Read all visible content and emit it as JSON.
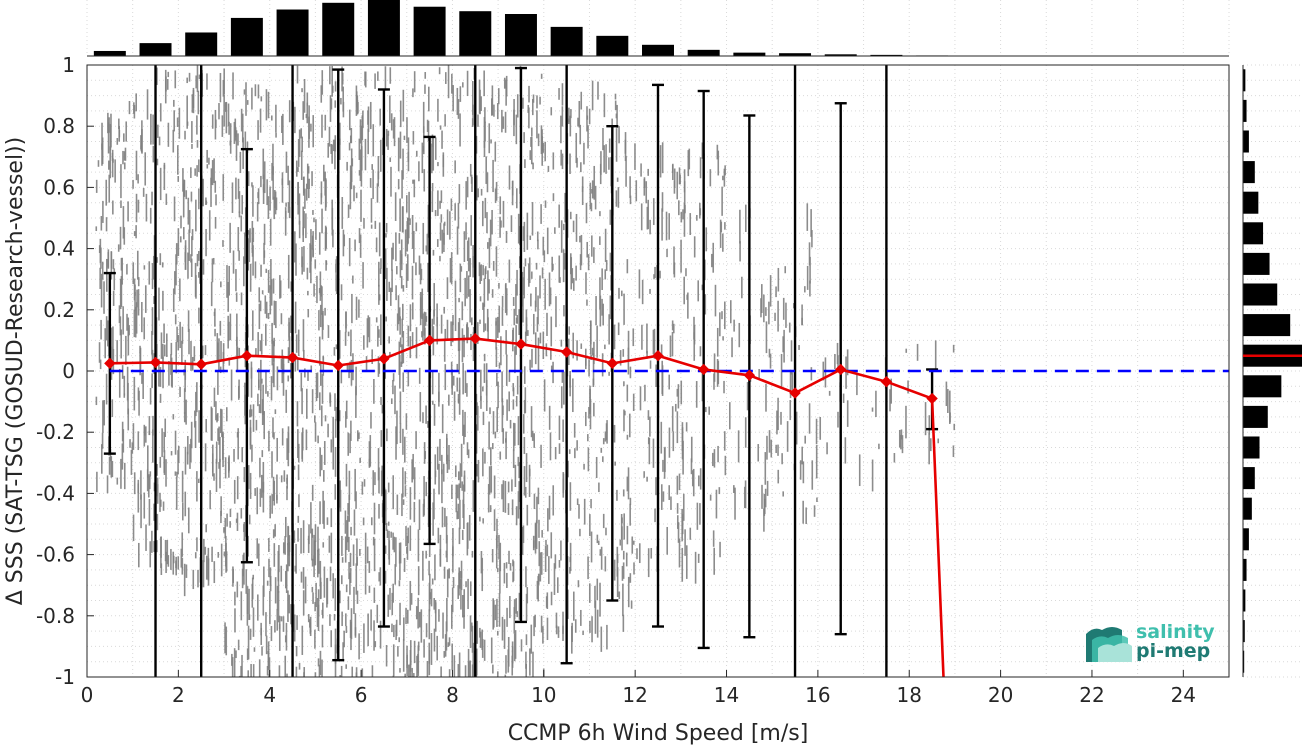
{
  "chart_data": {
    "type": "scatter",
    "xlabel": "CCMP 6h Wind Speed [m/s]",
    "ylabel": "Δ SSS (SAT-TSG (GOSUD-Research-vessel))",
    "xlim": [
      0,
      25
    ],
    "ylim": [
      -1,
      1
    ],
    "x_ticks": [
      "0",
      "2",
      "4",
      "6",
      "8",
      "10",
      "12",
      "14",
      "16",
      "18",
      "20",
      "22",
      "24"
    ],
    "y_ticks": [
      "-1",
      "-0.8",
      "-0.6",
      "-0.4",
      "-0.2",
      "0",
      "0.2",
      "0.4",
      "0.6",
      "0.8",
      "1"
    ],
    "grid": true,
    "reference_line": {
      "y": 0,
      "style": "dashed",
      "color": "#0000ff"
    },
    "binned_mean": {
      "color": "#e60000",
      "marker": "diamond",
      "x": [
        0.5,
        1.5,
        2.5,
        3.5,
        4.5,
        5.5,
        6.5,
        7.5,
        8.5,
        9.5,
        10.5,
        11.5,
        12.5,
        13.5,
        14.5,
        15.5,
        16.5,
        17.5,
        18.5
      ],
      "y": [
        0.025,
        0.028,
        0.022,
        0.05,
        0.044,
        0.018,
        0.04,
        0.1,
        0.106,
        0.088,
        0.062,
        0.025,
        0.05,
        0.005,
        -0.014,
        -0.072,
        0.005,
        -0.035,
        -0.09
      ],
      "tail": {
        "x": 18.75,
        "y": -1.0
      }
    },
    "error_bars": {
      "color": "#000000",
      "x": [
        0.5,
        1.5,
        2.5,
        3.5,
        4.5,
        5.5,
        6.5,
        7.5,
        8.5,
        9.5,
        10.5,
        11.5,
        12.5,
        13.5,
        14.5,
        15.5,
        16.5,
        17.5,
        18.5
      ],
      "low": [
        -0.27,
        -1.0,
        -1.0,
        -0.625,
        -1.0,
        -0.945,
        -0.835,
        -0.565,
        -1.0,
        -0.82,
        -0.955,
        -0.75,
        -0.835,
        -0.905,
        -0.87,
        -1.0,
        -0.86,
        -1.0,
        -0.19
      ],
      "high": [
        0.32,
        1.0,
        1.0,
        0.725,
        1.0,
        0.985,
        0.92,
        0.765,
        1.0,
        0.99,
        1.0,
        0.8,
        0.935,
        0.915,
        0.835,
        1.0,
        0.875,
        1.0,
        0.005
      ]
    },
    "scatter": {
      "color": "#808080",
      "description_bins": [
        {
          "x_from": 0.2,
          "x_to": 1,
          "y_from": -0.35,
          "y_to": 0.9,
          "density": 0.55
        },
        {
          "x_from": 1,
          "x_to": 3,
          "y_from": -0.65,
          "y_to": 1.0,
          "density": 0.7
        },
        {
          "x_from": 3,
          "x_to": 10,
          "y_from": -1.0,
          "y_to": 1.0,
          "density": 0.9
        },
        {
          "x_from": 10,
          "x_to": 12,
          "y_from": -0.85,
          "y_to": 0.95,
          "density": 0.6
        },
        {
          "x_from": 12,
          "x_to": 14,
          "y_from": -0.6,
          "y_to": 0.75,
          "density": 0.35
        },
        {
          "x_from": 14,
          "x_to": 16,
          "y_from": -0.45,
          "y_to": 0.55,
          "density": 0.18
        },
        {
          "x_from": 16,
          "x_to": 19,
          "y_from": -0.3,
          "y_to": 0.1,
          "density": 0.06
        }
      ]
    },
    "top_histogram": {
      "color": "#000000",
      "bin_centers": [
        0.5,
        1.5,
        2.5,
        3.5,
        4.5,
        5.5,
        6.5,
        7.5,
        8.5,
        9.5,
        10.5,
        11.5,
        12.5,
        13.5,
        14.5,
        15.5,
        16.5,
        17.5,
        18.5,
        19.5
      ],
      "relative_counts": [
        0.09,
        0.23,
        0.42,
        0.68,
        0.83,
        0.95,
        1.0,
        0.88,
        0.8,
        0.75,
        0.52,
        0.36,
        0.2,
        0.11,
        0.06,
        0.05,
        0.03,
        0.02,
        0.01,
        0.005
      ]
    },
    "right_histogram": {
      "color": "#000000",
      "bin_centers": [
        -0.95,
        -0.85,
        -0.75,
        -0.65,
        -0.55,
        -0.45,
        -0.35,
        -0.25,
        -0.15,
        -0.05,
        0.05,
        0.15,
        0.25,
        0.35,
        0.45,
        0.55,
        0.65,
        0.75,
        0.85,
        0.95
      ],
      "relative_counts": [
        0.02,
        0.03,
        0.04,
        0.06,
        0.1,
        0.15,
        0.2,
        0.28,
        0.42,
        0.65,
        1.0,
        0.8,
        0.58,
        0.45,
        0.34,
        0.26,
        0.2,
        0.1,
        0.06,
        0.04
      ],
      "mean_marker": {
        "y": 0.05,
        "color": "#e60000"
      }
    }
  },
  "logo": {
    "line1": "salinity",
    "line2": "pi-mep",
    "color1": "#3fbfad",
    "color2": "#1f7a73"
  }
}
